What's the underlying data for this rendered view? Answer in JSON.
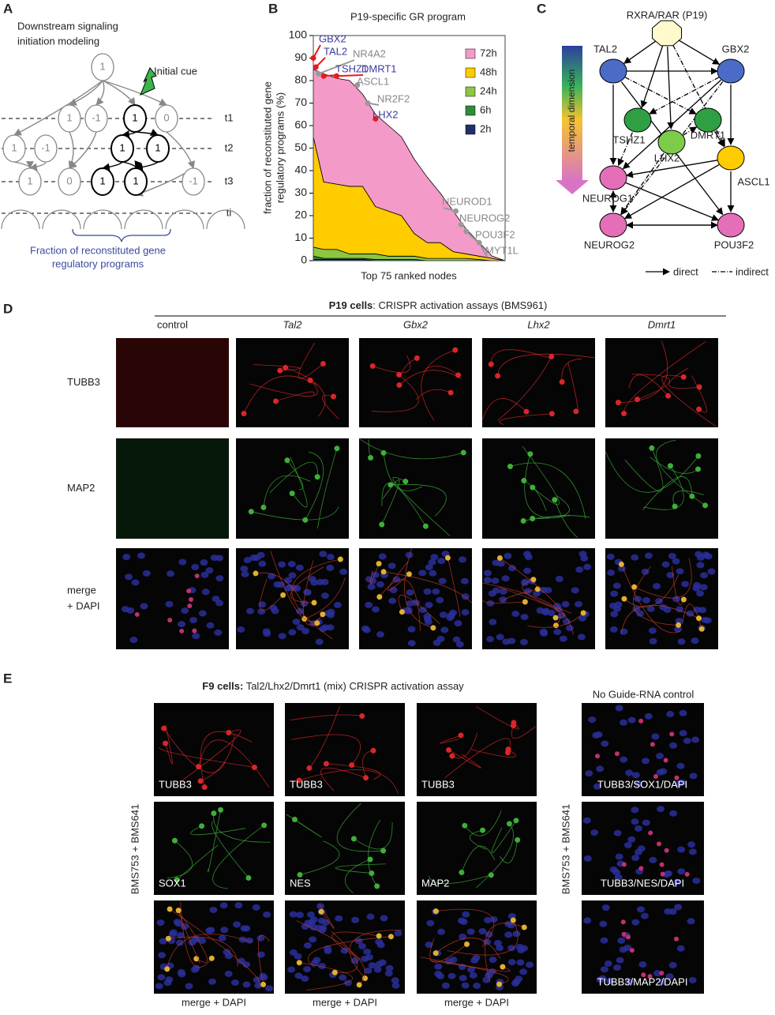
{
  "panel_labels": [
    "A",
    "B",
    "C",
    "D",
    "E"
  ],
  "panel_a": {
    "title": [
      "Downstream signaling",
      "initiation modeling"
    ],
    "initial_cue": "Initial cue",
    "time_labels": [
      "t1",
      "t2",
      "t3",
      "ti"
    ],
    "nodes": [
      "1",
      "1",
      "-1",
      "1",
      "0",
      "1",
      "-1",
      "1",
      "1",
      "1",
      "0",
      "1",
      "1",
      "-1"
    ],
    "caption": [
      "Fraction of reconstituted gene",
      "regulatory programs"
    ]
  },
  "chart_data": {
    "type": "area",
    "title": "P19-specific GR program",
    "y_label": [
      "fraction of reconstituted gene",
      "regulatory programs (%)"
    ],
    "x_label": "Top 75 ranked nodes",
    "x": [
      1,
      5,
      10,
      15,
      20,
      25,
      30,
      35,
      40,
      45,
      50,
      55,
      60,
      65,
      70,
      75
    ],
    "series": [
      {
        "name": "72h",
        "color": "#f49ac8",
        "values": [
          30,
          48,
          47,
          47,
          41,
          41,
          38,
          35,
          33,
          29,
          22,
          18,
          11,
          6,
          1,
          0
        ]
      },
      {
        "name": "48h",
        "color": "#ffcc00",
        "values": [
          49,
          30,
          29,
          30,
          30,
          21,
          20,
          18,
          10,
          7,
          7,
          3,
          2,
          1.5,
          1,
          0
        ]
      },
      {
        "name": "24h",
        "color": "#8dc63f",
        "values": [
          4,
          4,
          4,
          2,
          2,
          2.5,
          1.5,
          1.5,
          1.5,
          1,
          1,
          1,
          1,
          0.5,
          0,
          0
        ]
      },
      {
        "name": "6h",
        "color": "#2e8b3a",
        "values": [
          1.5,
          0.5,
          0.5,
          0.5,
          0.5,
          0.5,
          0.5,
          0.5,
          0.5,
          0,
          0,
          0,
          0,
          0,
          0,
          0
        ]
      },
      {
        "name": "2h",
        "color": "#1f2f6b",
        "values": [
          0.5,
          0.5,
          0.5,
          0.5,
          0.5,
          0,
          0,
          0,
          0,
          0,
          0,
          0,
          0,
          0,
          0,
          0
        ]
      }
    ],
    "xlim": [
      1,
      75
    ],
    "ylim": [
      0,
      100
    ],
    "yticks": [
      0,
      10,
      20,
      30,
      40,
      50,
      60,
      70,
      80,
      90,
      100
    ],
    "annotations": [
      {
        "text": "GBX2",
        "x": 1,
        "y": 90,
        "color": "#e8191f",
        "text_color": "#3a3a9e"
      },
      {
        "text": "TAL2",
        "x": 2,
        "y": 86,
        "color": "#e8191f",
        "text_color": "#3a3a9e"
      },
      {
        "text": "NR4A2",
        "x": 3,
        "y": 83,
        "color": "#999999",
        "text_color": "#888888"
      },
      {
        "text": "TSHZ1",
        "x": 5,
        "y": 82,
        "color": "#e8191f",
        "text_color": "#3a3a9e"
      },
      {
        "text": "DMRT1",
        "x": 10,
        "y": 82,
        "color": "#e8191f",
        "text_color": "#3a3a9e"
      },
      {
        "text": "ASCL1",
        "x": 18,
        "y": 78,
        "color": "#999999",
        "text_color": "#888888"
      },
      {
        "text": "NR2F2",
        "x": 22,
        "y": 70,
        "color": "#999999",
        "text_color": "#888888"
      },
      {
        "text": "LHX2",
        "x": 25,
        "y": 63,
        "color": "#e8191f",
        "text_color": "#3a3a9e"
      },
      {
        "text": "NEUROD1",
        "x": 56,
        "y": 22,
        "color": "#999999",
        "text_color": "#888888"
      },
      {
        "text": "NEUROG2",
        "x": 58,
        "y": 16,
        "color": "#999999",
        "text_color": "#888888"
      },
      {
        "text": "POU3F2",
        "x": 60,
        "y": 13,
        "color": "#999999",
        "text_color": "#888888"
      },
      {
        "text": "MYT1L",
        "x": 65,
        "y": 8,
        "color": "#999999",
        "text_color": "#888888"
      }
    ]
  },
  "panel_c": {
    "nodes": [
      {
        "label": "RXRA/RAR (P19)",
        "color": "#fffacc"
      },
      {
        "label": "TAL2",
        "color": "#4a6cc7"
      },
      {
        "label": "GBX2",
        "color": "#4a6cc7"
      },
      {
        "label": "TSHZ1",
        "color": "#2ea043"
      },
      {
        "label": "DMRT1",
        "color": "#2ea043"
      },
      {
        "label": "LHX2",
        "color": "#7ccb4a"
      },
      {
        "label": "ASCL1",
        "color": "#ffcc00"
      },
      {
        "label": "NEUROG1",
        "color": "#e46fb8"
      },
      {
        "label": "NEUROG2",
        "color": "#e46fb8"
      },
      {
        "label": "POU3F2",
        "color": "#e46fb8"
      }
    ],
    "temporal_label": "temporal dimension",
    "legend": [
      "direct",
      "indirect"
    ]
  },
  "panel_d": {
    "header_bold": "P19 cells",
    "header_rest": ": CRISPR activation assays (BMS961)",
    "columns": [
      "control",
      "Tal2",
      "Gbx2",
      "Lhx2",
      "Dmrt1"
    ],
    "rows": [
      [
        "TUBB3"
      ],
      [
        "MAP2"
      ],
      [
        "merge",
        "+ DAPI"
      ]
    ]
  },
  "panel_e": {
    "header_bold": "F9 cells:",
    "header_rest": " Tal2/Lhx2/Dmrt1 (mix) CRISPR activation assay",
    "side_label": "BMS753 + BMS641",
    "tiles": [
      [
        "TUBB3",
        "TUBB3",
        "TUBB3"
      ],
      [
        "SOX1",
        "NES",
        "MAP2"
      ]
    ],
    "captions": [
      "merge + DAPI",
      "merge + DAPI",
      "merge + DAPI"
    ],
    "control_title": "No Guide-RNA control",
    "control_side_label": "BMS753 + BMS641",
    "control_tiles": [
      "TUBB3/SOX1/DAPI",
      "TUBB3/NES/DAPI",
      "TUBB3/MAP2/DAPI"
    ]
  }
}
